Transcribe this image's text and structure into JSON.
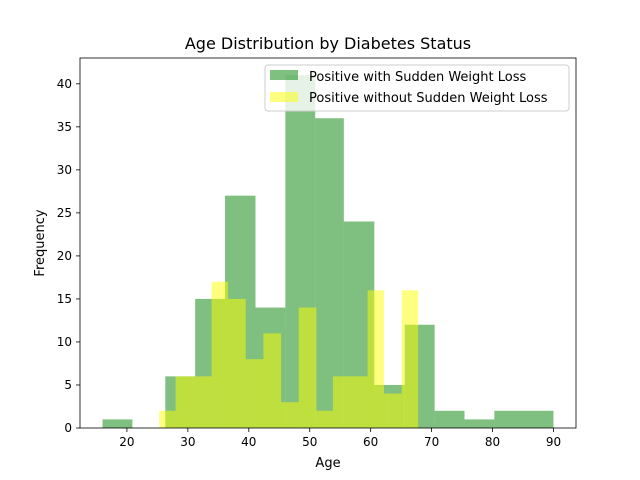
{
  "chart_data": {
    "type": "bar",
    "title": "Age Distribution by Diabetes Status",
    "xlabel": "Age",
    "ylabel": "Frequency",
    "xlim": [
      12.3,
      93.7
    ],
    "ylim": [
      0,
      43
    ],
    "xticks": [
      20,
      30,
      40,
      50,
      60,
      70,
      80,
      90
    ],
    "yticks": [
      0,
      5,
      10,
      15,
      20,
      25,
      30,
      35,
      40
    ],
    "grid": false,
    "legend_position": "top-right",
    "series": [
      {
        "name": "Positive with Sudden Weight Loss",
        "color": "#008000",
        "opacity": 0.5,
        "bins": [
          {
            "x0": 16.0,
            "x1": 20.9,
            "count": 1
          },
          {
            "x0": 26.3,
            "x1": 28.0,
            "count": 6
          },
          {
            "x0": 28.0,
            "x1": 31.2,
            "count": 6
          },
          {
            "x0": 31.2,
            "x1": 36.1,
            "count": 15
          },
          {
            "x0": 36.1,
            "x1": 41.1,
            "count": 27
          },
          {
            "x0": 41.1,
            "x1": 46.0,
            "count": 14
          },
          {
            "x0": 46.0,
            "x1": 50.9,
            "count": 41
          },
          {
            "x0": 50.9,
            "x1": 55.6,
            "count": 36
          },
          {
            "x0": 55.6,
            "x1": 60.6,
            "count": 24
          },
          {
            "x0": 60.6,
            "x1": 62.7,
            "count": 5
          },
          {
            "x0": 62.7,
            "x1": 65.6,
            "count": 5
          },
          {
            "x0": 65.6,
            "x1": 70.5,
            "count": 12
          },
          {
            "x0": 70.5,
            "x1": 75.4,
            "count": 2
          },
          {
            "x0": 75.4,
            "x1": 80.3,
            "count": 1
          },
          {
            "x0": 80.3,
            "x1": 90.0,
            "count": 2
          }
        ]
      },
      {
        "name": "Positive without Sudden Weight Loss",
        "color": "#ffff00",
        "opacity": 0.5,
        "bins": [
          {
            "x0": 25.3,
            "x1": 28.0,
            "count": 2
          },
          {
            "x0": 28.0,
            "x1": 31.2,
            "count": 6
          },
          {
            "x0": 31.2,
            "x1": 33.9,
            "count": 6
          },
          {
            "x0": 33.9,
            "x1": 36.6,
            "count": 17
          },
          {
            "x0": 36.6,
            "x1": 39.5,
            "count": 15
          },
          {
            "x0": 39.5,
            "x1": 42.4,
            "count": 8
          },
          {
            "x0": 42.4,
            "x1": 45.3,
            "count": 11
          },
          {
            "x0": 45.3,
            "x1": 48.2,
            "count": 3
          },
          {
            "x0": 48.2,
            "x1": 51.1,
            "count": 14
          },
          {
            "x0": 51.1,
            "x1": 53.8,
            "count": 2
          },
          {
            "x0": 53.8,
            "x1": 56.8,
            "count": 6
          },
          {
            "x0": 56.8,
            "x1": 59.5,
            "count": 6
          },
          {
            "x0": 59.5,
            "x1": 62.2,
            "count": 16
          },
          {
            "x0": 62.2,
            "x1": 65.1,
            "count": 4
          },
          {
            "x0": 65.1,
            "x1": 67.8,
            "count": 16
          }
        ]
      }
    ]
  }
}
